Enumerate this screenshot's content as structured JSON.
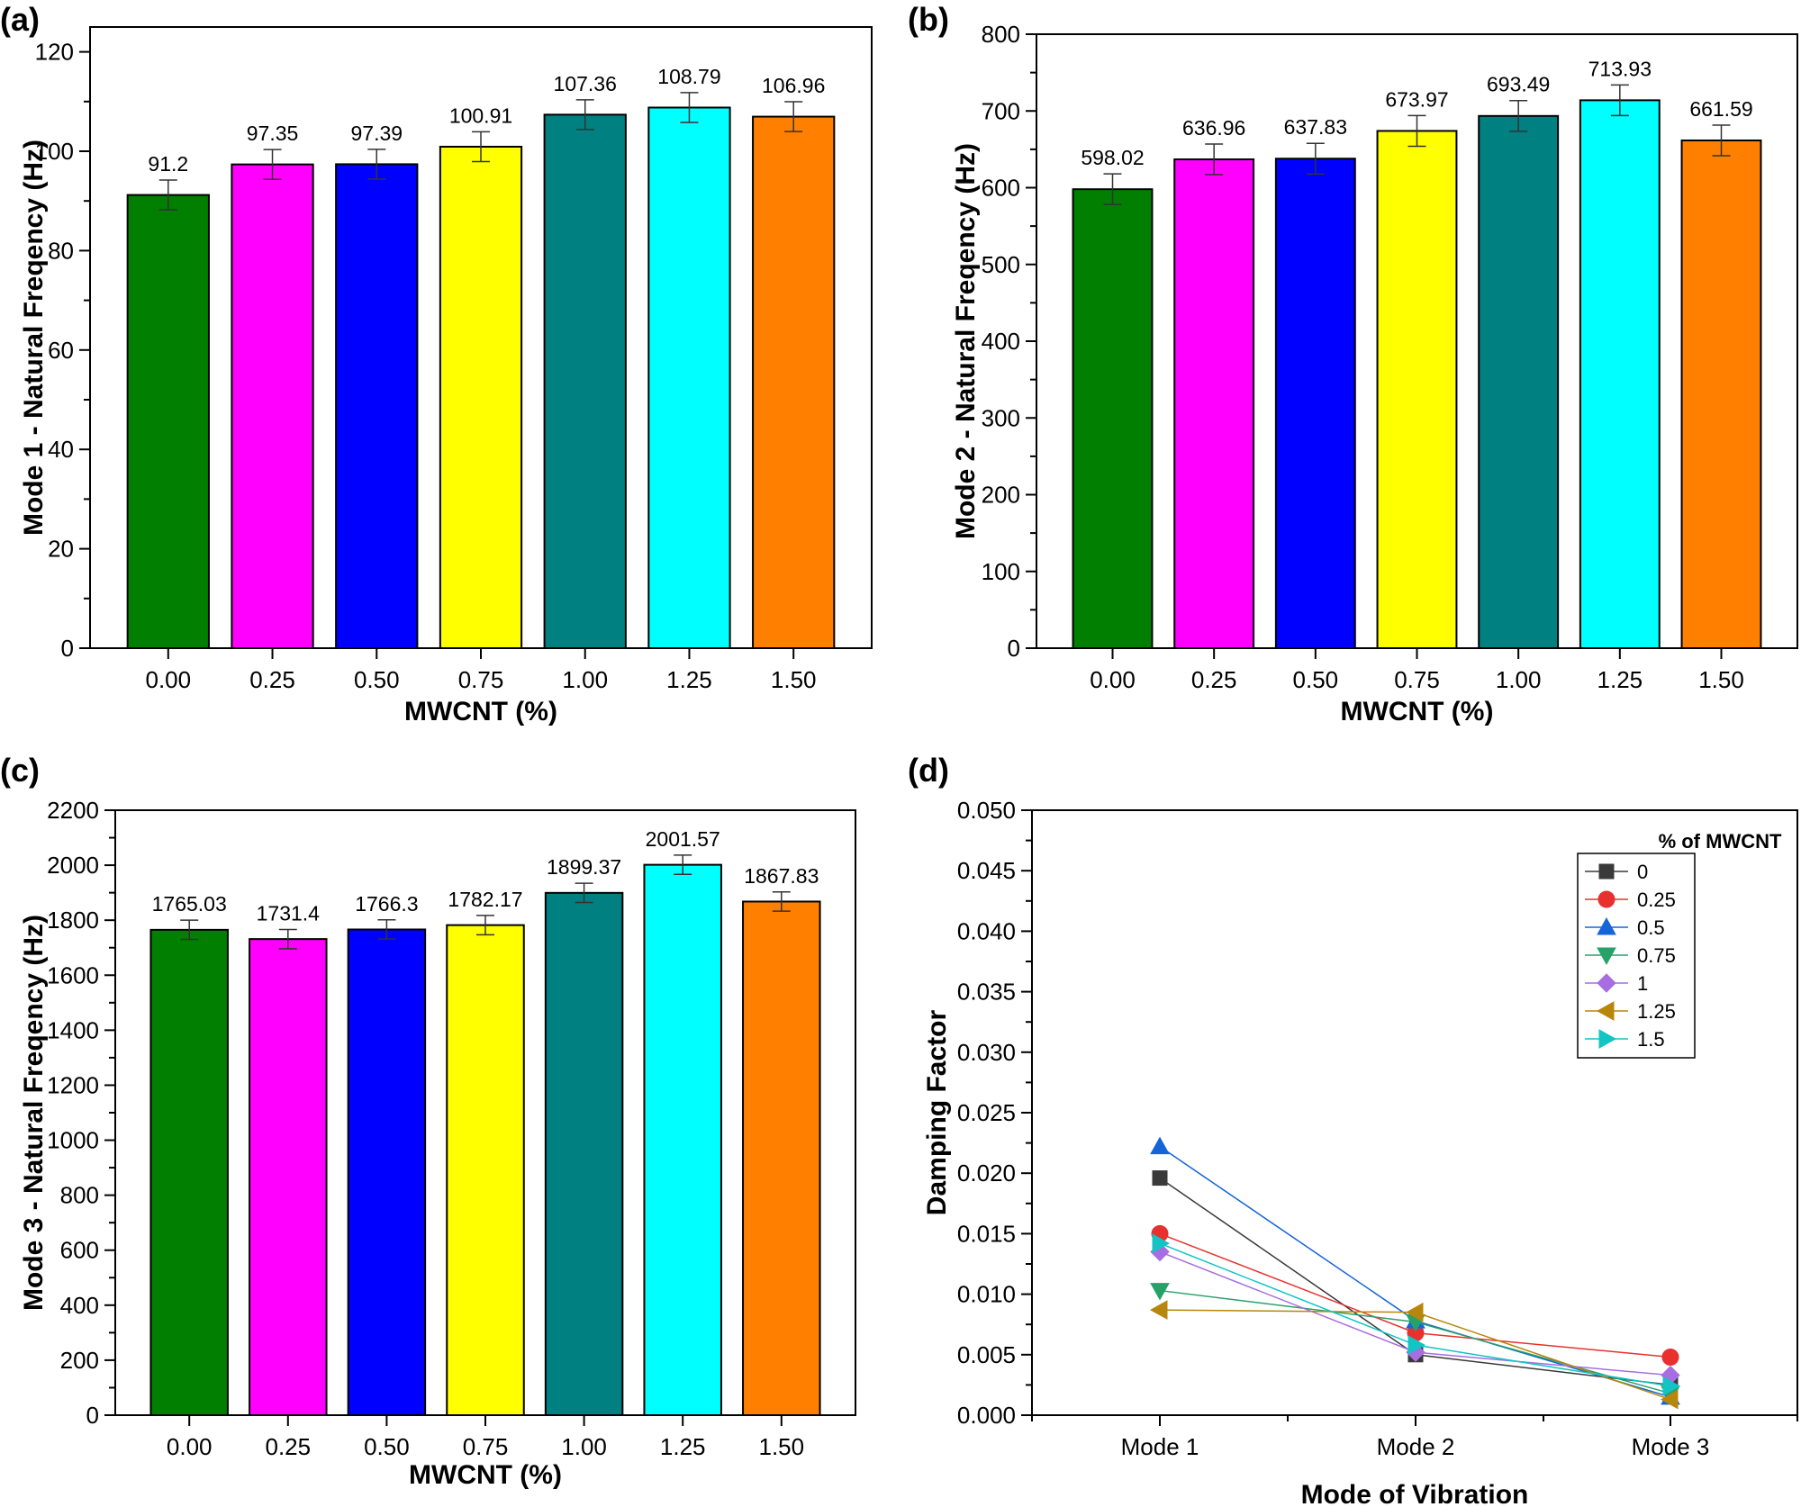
{
  "chart_data": [
    {
      "panel": "(a)",
      "type": "bar",
      "categories": [
        "0.00",
        "0.25",
        "0.50",
        "0.75",
        "1.00",
        "1.25",
        "1.50"
      ],
      "values": [
        91.2,
        97.35,
        97.39,
        100.91,
        107.36,
        108.79,
        106.96
      ],
      "value_labels": [
        "91.2",
        "97.35",
        "97.39",
        "100.91",
        "107.36",
        "108.79",
        "106.96"
      ],
      "error": [
        3,
        3,
        3,
        3,
        3,
        3,
        3
      ],
      "colors": [
        "#007f00",
        "#ff00ff",
        "#0000ff",
        "#ffff00",
        "#008080",
        "#00ffff",
        "#ff8000"
      ],
      "xlabel": "MWCNT (%)",
      "ylabel": "Mode 1 - Natural Freqency (Hz)",
      "ylim": [
        0,
        125
      ],
      "yticks": [
        0,
        20,
        40,
        60,
        80,
        100,
        120
      ]
    },
    {
      "panel": "(b)",
      "type": "bar",
      "categories": [
        "0.00",
        "0.25",
        "0.50",
        "0.75",
        "1.00",
        "1.25",
        "1.50"
      ],
      "values": [
        598.02,
        636.96,
        637.83,
        673.97,
        693.49,
        713.93,
        661.59
      ],
      "value_labels": [
        "598.02",
        "636.96",
        "637.83",
        "673.97",
        "693.49",
        "713.93",
        "661.59"
      ],
      "error": [
        20,
        20,
        20,
        20,
        20,
        20,
        20
      ],
      "colors": [
        "#007f00",
        "#ff00ff",
        "#0000ff",
        "#ffff00",
        "#008080",
        "#00ffff",
        "#ff8000"
      ],
      "xlabel": "MWCNT (%)",
      "ylabel": "Mode 2 - Natural Freqency (Hz)",
      "ylim": [
        0,
        800
      ],
      "yticks": [
        0,
        100,
        200,
        300,
        400,
        500,
        600,
        700,
        800
      ]
    },
    {
      "panel": "(c)",
      "type": "bar",
      "categories": [
        "0.00",
        "0.25",
        "0.50",
        "0.75",
        "1.00",
        "1.25",
        "1.50"
      ],
      "values": [
        1765.03,
        1731.4,
        1766.3,
        1782.17,
        1899.37,
        2001.57,
        1867.83
      ],
      "value_labels": [
        "1765.03",
        "1731.4",
        "1766.3",
        "1782.17",
        "1899.37",
        "2001.57",
        "1867.83"
      ],
      "error": [
        35,
        35,
        35,
        35,
        35,
        35,
        35
      ],
      "colors": [
        "#007f00",
        "#ff00ff",
        "#0000ff",
        "#ffff00",
        "#008080",
        "#00ffff",
        "#ff8000"
      ],
      "xlabel": "MWCNT (%)",
      "ylabel": "Mode 3 - Natural Freqency (Hz)",
      "ylim": [
        0,
        2200
      ],
      "yticks": [
        0,
        200,
        400,
        600,
        800,
        1000,
        1200,
        1400,
        1600,
        1800,
        2000,
        2200
      ]
    },
    {
      "panel": "(d)",
      "type": "line",
      "categories": [
        "Mode 1",
        "Mode 2",
        "Mode 3"
      ],
      "xlabel": "Mode of Vibration",
      "ylabel": "Damping Factor",
      "ylim": [
        0,
        0.05
      ],
      "yticks": [
        "0.000",
        "0.005",
        "0.010",
        "0.015",
        "0.020",
        "0.025",
        "0.030",
        "0.035",
        "0.040",
        "0.045",
        "0.050"
      ],
      "legend_title": "% of MWCNT",
      "legend_position": "top-right",
      "series": [
        {
          "name": "0",
          "marker": "square",
          "color": "#3a3a3a",
          "values": [
            0.0196,
            0.005,
            0.0025
          ]
        },
        {
          "name": "0.25",
          "marker": "circle",
          "color": "#e8312f",
          "values": [
            0.015,
            0.0068,
            0.0048
          ]
        },
        {
          "name": "0.5",
          "marker": "triangle-up",
          "color": "#1565d8",
          "values": [
            0.0222,
            0.0078,
            0.0015
          ]
        },
        {
          "name": "0.75",
          "marker": "triangle-down",
          "color": "#26a269",
          "values": [
            0.0103,
            0.0077,
            0.0018
          ]
        },
        {
          "name": "1",
          "marker": "diamond",
          "color": "#a66ee0",
          "values": [
            0.0135,
            0.0052,
            0.0033
          ]
        },
        {
          "name": "1.25",
          "marker": "triangle-left",
          "color": "#b8860b",
          "values": [
            0.0087,
            0.0085,
            0.0013
          ]
        },
        {
          "name": "1.5",
          "marker": "triangle-right",
          "color": "#12c4c4",
          "values": [
            0.0142,
            0.0058,
            0.0024
          ]
        }
      ]
    }
  ]
}
